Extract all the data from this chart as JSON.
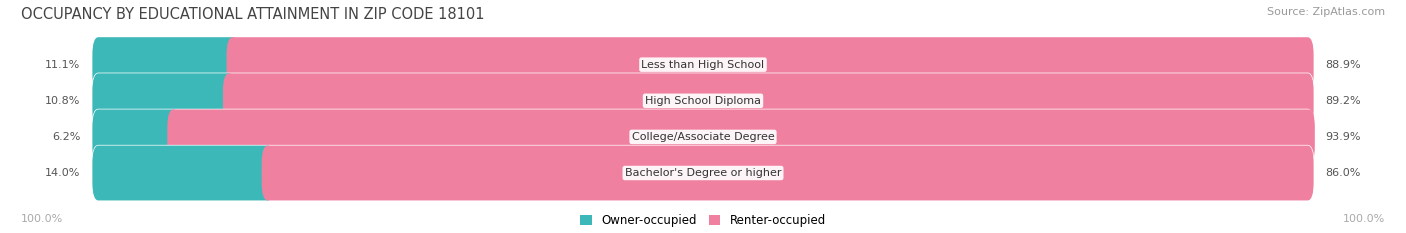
{
  "title": "OCCUPANCY BY EDUCATIONAL ATTAINMENT IN ZIP CODE 18101",
  "source": "Source: ZipAtlas.com",
  "categories": [
    "Less than High School",
    "High School Diploma",
    "College/Associate Degree",
    "Bachelor's Degree or higher"
  ],
  "owner_pct": [
    11.1,
    10.8,
    6.2,
    14.0
  ],
  "renter_pct": [
    88.9,
    89.2,
    93.9,
    86.0
  ],
  "owner_color": "#3db8b8",
  "renter_color": "#f080a0",
  "bar_bg_color": "#e8e8e8",
  "title_fontsize": 10.5,
  "source_fontsize": 8,
  "label_fontsize": 8,
  "legend_fontsize": 8.5,
  "axis_label_left": "100.0%",
  "axis_label_right": "100.0%",
  "background_color": "#ffffff"
}
